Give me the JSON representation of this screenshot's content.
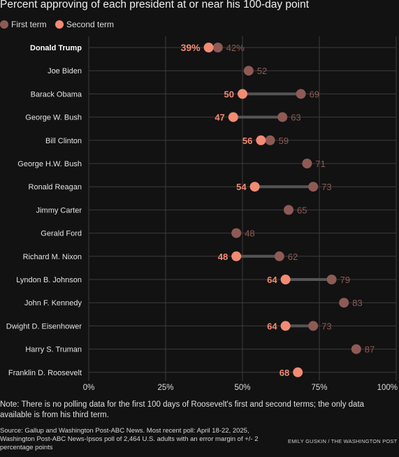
{
  "title": "Percent approving of each president at or near his 100-day point",
  "legend": {
    "items": [
      {
        "label": "First term",
        "color": "#8e5a55"
      },
      {
        "label": "Second term",
        "color": "#f28b74"
      }
    ]
  },
  "colors": {
    "first_term": "#8e5a55",
    "second_term": "#f28b74",
    "connector": "#555555",
    "grid": "#3c3c3c",
    "background": "#121212"
  },
  "chart_data": {
    "type": "dot",
    "title": "Percent approving of each president at or near his 100-day point",
    "xlim": [
      0,
      100
    ],
    "x_ticks": [
      "0%",
      "25%",
      "50%",
      "75%",
      "100%"
    ],
    "x_tick_values": [
      0,
      25,
      50,
      75,
      100
    ],
    "grid": true,
    "legend_position": "top-left",
    "series_names": [
      "First term",
      "Second term"
    ],
    "rows": [
      {
        "president": "Donald Trump",
        "first": 42,
        "second": 39,
        "first_label": "42%",
        "second_label": "39%",
        "highlight": true
      },
      {
        "president": "Joe Biden",
        "first": 52,
        "second": null,
        "first_label": "52",
        "second_label": null
      },
      {
        "president": "Barack Obama",
        "first": 69,
        "second": 50,
        "first_label": "69",
        "second_label": "50"
      },
      {
        "president": "George W. Bush",
        "first": 63,
        "second": 47,
        "first_label": "63",
        "second_label": "47"
      },
      {
        "president": "Bill Clinton",
        "first": 59,
        "second": 56,
        "first_label": "59",
        "second_label": "56"
      },
      {
        "president": "George H.W. Bush",
        "first": 71,
        "second": null,
        "first_label": "71",
        "second_label": null
      },
      {
        "president": "Ronald Reagan",
        "first": 73,
        "second": 54,
        "first_label": "73",
        "second_label": "54"
      },
      {
        "president": "Jimmy Carter",
        "first": 65,
        "second": null,
        "first_label": "65",
        "second_label": null
      },
      {
        "president": "Gerald Ford",
        "first": 48,
        "second": null,
        "first_label": "48",
        "second_label": null
      },
      {
        "president": "Richard M. Nixon",
        "first": 62,
        "second": 48,
        "first_label": "62",
        "second_label": "48"
      },
      {
        "president": "Lyndon B. Johnson",
        "first": 79,
        "second": 64,
        "first_label": "79",
        "second_label": "64"
      },
      {
        "president": "John F. Kennedy",
        "first": 83,
        "second": null,
        "first_label": "83",
        "second_label": null
      },
      {
        "president": "Dwight D. Eisenhower",
        "first": 73,
        "second": 64,
        "first_label": "73",
        "second_label": "64"
      },
      {
        "president": "Harry S. Truman",
        "first": 87,
        "second": null,
        "first_label": "87",
        "second_label": null
      },
      {
        "president": "Franklin D. Roosevelt",
        "first": null,
        "second": 68,
        "first_label": null,
        "second_label": "68"
      }
    ]
  },
  "note": "Note: There is no polling data for the first 100 days of Roosevelt's first and second terms; the only data available is from his third term.",
  "source": "Source: Gallup and Washington Post-ABC News. Most recent poll: April 18-22, 2025, Washington Post-ABC News-Ipsos poll of 2,464 U.S. adults with an error margin of +/- 2 percentage points",
  "credit": "EMILY GUSKIN / THE WASHINGTON POST"
}
